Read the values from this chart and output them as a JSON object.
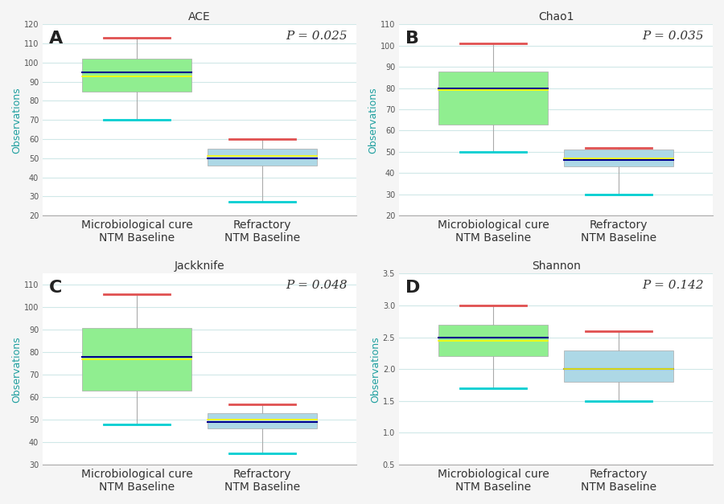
{
  "panels": [
    {
      "label": "A",
      "title": "ACE",
      "p_value": "P = 0.025",
      "ylim": [
        20,
        120
      ],
      "yticks": [
        20,
        30,
        40,
        50,
        60,
        70,
        80,
        90,
        100,
        110,
        120
      ],
      "groups": [
        {
          "name": "Microbiological cure\nNTM Baseline",
          "whisker_low": 70,
          "q1": 85,
          "median": 95,
          "mean": 93,
          "q3": 102,
          "whisker_high": 113,
          "max_outlier": null,
          "min_outlier": null,
          "box_color": "#90EE90",
          "median_color": "#00008B",
          "mean_color": "#FFFF00",
          "whisker_color": "#00CED1"
        },
        {
          "name": "Refractory\nNTM Baseline",
          "whisker_low": 27,
          "q1": 46,
          "median": 50,
          "mean": 51,
          "q3": 55,
          "whisker_high": 60,
          "max_outlier": null,
          "min_outlier": null,
          "box_color": "#ADD8E6",
          "median_color": "#00008B",
          "mean_color": "#FFFF00",
          "whisker_color": "#00CED1"
        }
      ]
    },
    {
      "label": "B",
      "title": "Chao1",
      "p_value": "P = 0.035",
      "ylim": [
        20,
        110
      ],
      "yticks": [
        20,
        30,
        40,
        50,
        60,
        70,
        80,
        90,
        100,
        110
      ],
      "groups": [
        {
          "name": "Microbiological cure\nNTM Baseline",
          "whisker_low": 50,
          "q1": 63,
          "median": 80,
          "mean": 79,
          "q3": 88,
          "whisker_high": 101,
          "max_outlier": null,
          "min_outlier": null,
          "box_color": "#90EE90",
          "median_color": "#00008B",
          "mean_color": "#FFFF00",
          "whisker_color": "#00CED1"
        },
        {
          "name": "Refractory\nNTM Baseline",
          "whisker_low": 30,
          "q1": 43,
          "median": 46,
          "mean": 47,
          "q3": 51,
          "whisker_high": 52,
          "max_outlier": null,
          "min_outlier": null,
          "box_color": "#ADD8E6",
          "median_color": "#00008B",
          "mean_color": "#FFFF00",
          "whisker_color": "#00CED1"
        }
      ]
    },
    {
      "label": "C",
      "title": "Jackknife",
      "p_value": "P = 0.048",
      "ylim": [
        30,
        115
      ],
      "yticks": [
        30,
        40,
        50,
        60,
        70,
        80,
        90,
        100,
        110
      ],
      "groups": [
        {
          "name": "Microbiological cure\nNTM Baseline",
          "whisker_low": 48,
          "q1": 63,
          "median": 78,
          "mean": 77,
          "q3": 91,
          "whisker_high": 106,
          "max_outlier": null,
          "min_outlier": null,
          "box_color": "#90EE90",
          "median_color": "#00008B",
          "mean_color": "#FFFF00",
          "whisker_color": "#00CED1"
        },
        {
          "name": "Refractory\nNTM Baseline",
          "whisker_low": 35,
          "q1": 46,
          "median": 49,
          "mean": 50,
          "q3": 53,
          "whisker_high": 57,
          "max_outlier": null,
          "min_outlier": null,
          "box_color": "#ADD8E6",
          "median_color": "#00008B",
          "mean_color": "#FFFF00",
          "whisker_color": "#00CED1"
        }
      ]
    },
    {
      "label": "D",
      "title": "Shannon",
      "p_value": "P = 0.142",
      "ylim": [
        0.5,
        3.5
      ],
      "yticks": [
        0.5,
        1.0,
        1.5,
        2.0,
        2.5,
        3.0,
        3.5
      ],
      "groups": [
        {
          "name": "Microbiological cure\nNTM Baseline",
          "whisker_low": 1.7,
          "q1": 2.2,
          "median": 2.5,
          "mean": 2.45,
          "q3": 2.7,
          "whisker_high": 3.0,
          "max_outlier": null,
          "min_outlier": null,
          "box_color": "#90EE90",
          "median_color": "#00008B",
          "mean_color": "#FFFF00",
          "whisker_color": "#00CED1"
        },
        {
          "name": "Refractory\nNTM Baseline",
          "whisker_low": 1.5,
          "q1": 1.8,
          "median": 2.0,
          "mean": 2.0,
          "q3": 2.3,
          "whisker_high": 2.6,
          "max_outlier": null,
          "min_outlier": null,
          "box_color": "#ADD8E6",
          "median_color": "#00008B",
          "mean_color": "#FFFF00",
          "whisker_color": "#00CED1"
        }
      ]
    }
  ],
  "background_color": "#f5f5f5",
  "panel_bg_color": "#ffffff",
  "grid_color": "#d0e8e8",
  "whisker_outlier_color_max": "#e05050",
  "whisker_outlier_color_min": "#00CED1",
  "ylabel": "Observations",
  "ylabel_color": "#20a0a0",
  "xlabel_fontsize": 10,
  "ylabel_fontsize": 9,
  "title_fontsize": 10,
  "label_fontsize": 16,
  "pval_fontsize": 11
}
